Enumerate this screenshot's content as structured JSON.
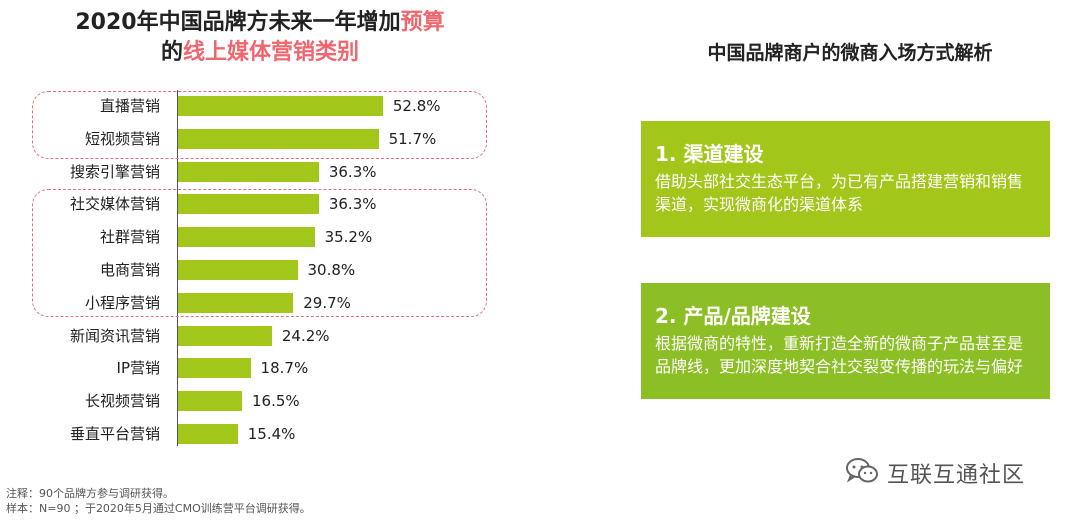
{
  "chart_data": {
    "type": "bar",
    "orientation": "horizontal",
    "title_parts": [
      "2020年中国品牌方未来一年增加",
      "预算",
      "的",
      "线上媒体营销类别"
    ],
    "categories": [
      "直播营销",
      "短视频营销",
      "搜索引擎营销",
      "社交媒体营销",
      "社群营销",
      "电商营销",
      "小程序营销",
      "新闻资讯营销",
      "IP营销",
      "长视频营销",
      "垂直平台营销"
    ],
    "values": [
      52.8,
      51.7,
      36.3,
      36.3,
      35.2,
      30.8,
      29.7,
      24.2,
      18.7,
      16.5,
      15.4
    ],
    "value_labels": [
      "52.8%",
      "51.7%",
      "36.3%",
      "36.3%",
      "35.2%",
      "30.8%",
      "29.7%",
      "24.2%",
      "18.7%",
      "16.5%",
      "15.4%"
    ],
    "xlim": [
      0,
      100
    ],
    "bar_color": "#a2c61a",
    "highlight_color": "#f0666f",
    "grid": false
  },
  "notes": {
    "line1": "注释：90个品牌方参与调研获得。",
    "line2": "样本：N=90 ；于2020年5月通过CMO训练营平台调研获得。"
  },
  "right_panel": {
    "title": "中国品牌商户的微商入场方式解析",
    "cards": [
      {
        "title": "1. 渠道建设",
        "body": "借助头部社交生态平台，为已有产品搭建营销和销售渠道，实现微商化的渠道体系",
        "color": "#a2c61a"
      },
      {
        "title": "2. 产品/品牌建设",
        "body": "根据微商的特性，重新打造全新的微商子产品甚至是品牌线，更加深度地契合社交裂变传播的玩法与偏好",
        "color": "#8cbf26"
      }
    ]
  },
  "watermark": {
    "text": "互联互通社区",
    "icon": "wechat-icon"
  }
}
